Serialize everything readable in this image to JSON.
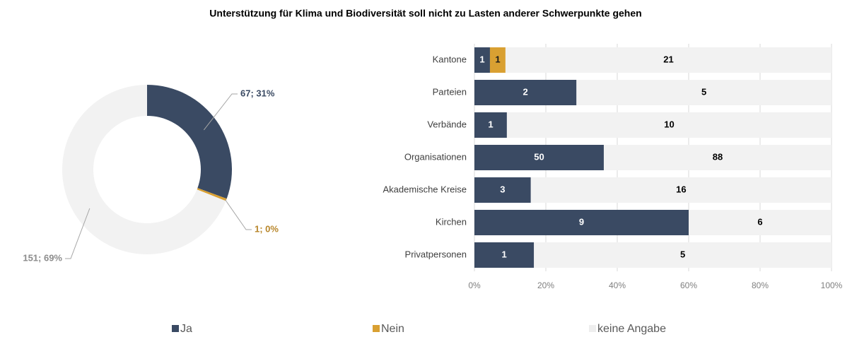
{
  "title": "Unterstützung für Klima und Biodiversität soll nicht zu Lasten anderer Schwerpunkte gehen",
  "chart_data": [
    {
      "type": "pie",
      "donut": true,
      "values": [
        67,
        1,
        151
      ],
      "value_labels": [
        "67; 31%",
        "1; 0%",
        "151; 69%"
      ],
      "colors": [
        "#3a4a63",
        "#d9a032",
        "#f2f2f2"
      ],
      "label_colors": [
        "#3a4a63",
        "#b8862a",
        "#8c8c8c"
      ]
    },
    {
      "type": "bar",
      "orientation": "horizontal",
      "stacked": "percent",
      "categories": [
        "Kantone",
        "Parteien",
        "Verbände",
        "Organisationen",
        "Akademische Kreise",
        "Kirchen",
        "Privatpersonen"
      ],
      "series": [
        {
          "name": "Ja",
          "color": "#3a4a63",
          "label_color": "#ffffff",
          "values": [
            1,
            2,
            1,
            50,
            3,
            9,
            1
          ]
        },
        {
          "name": "Nein",
          "color": "#d9a032",
          "label_color": "#1a1a1a",
          "values": [
            1,
            0,
            0,
            0,
            0,
            0,
            0
          ]
        },
        {
          "name": "keine Angabe",
          "color": "#f2f2f2",
          "label_color": "#000000",
          "values": [
            21,
            5,
            10,
            88,
            16,
            6,
            5
          ]
        }
      ],
      "xlim": [
        0,
        100
      ],
      "xticks": [
        {
          "value": 0,
          "label": "0%"
        },
        {
          "value": 20,
          "label": "20%"
        },
        {
          "value": 40,
          "label": "40%"
        },
        {
          "value": 60,
          "label": "60%"
        },
        {
          "value": 80,
          "label": "80%"
        },
        {
          "value": 100,
          "label": "100%"
        }
      ],
      "grid": true,
      "legend": "bottom"
    }
  ]
}
